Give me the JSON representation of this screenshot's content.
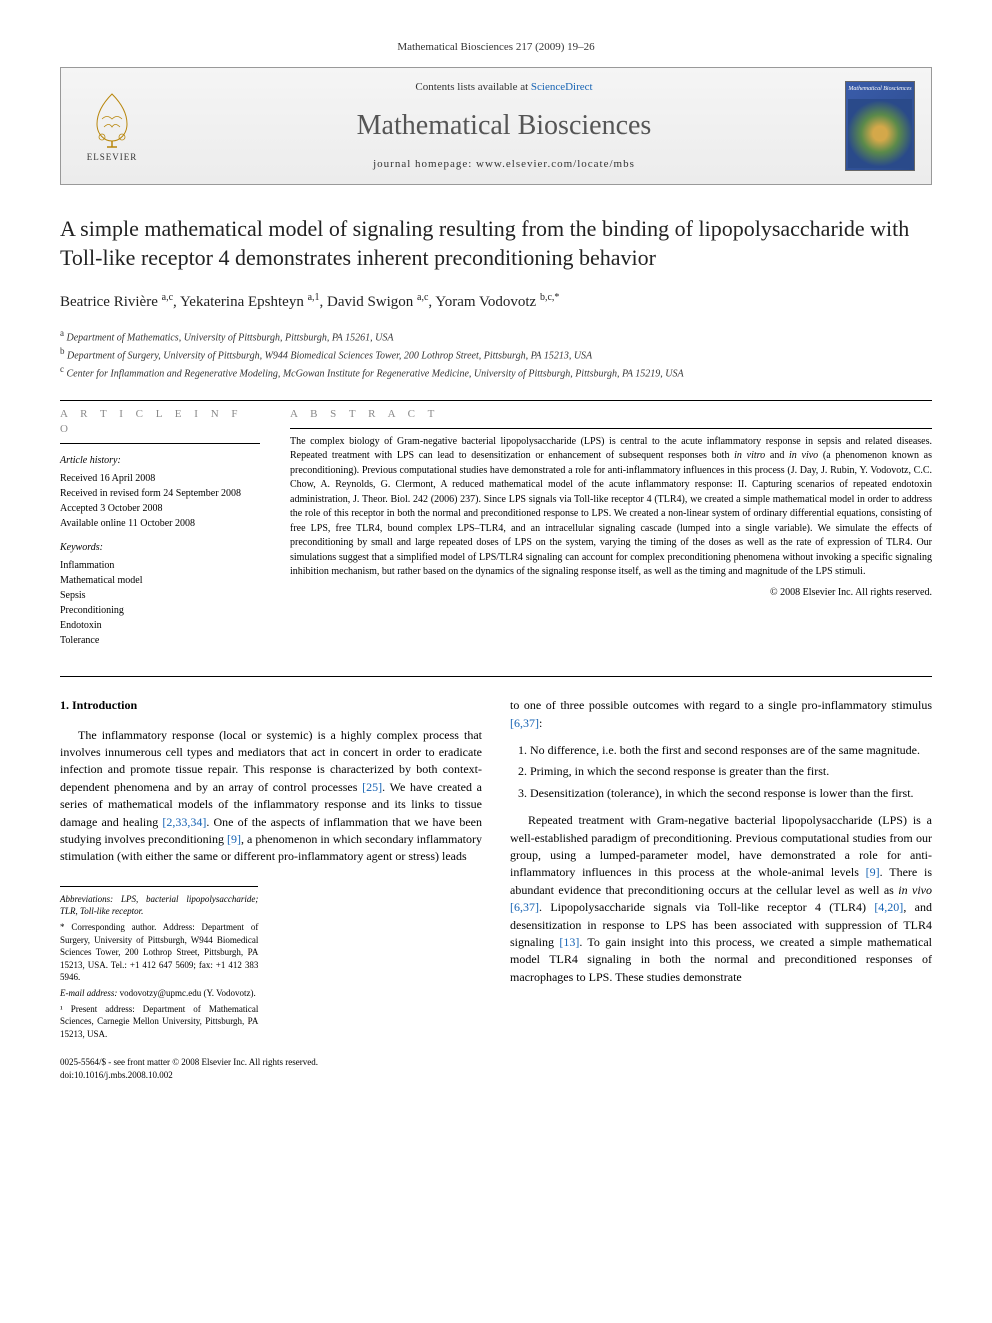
{
  "journal_ref": "Mathematical Biosciences 217 (2009) 19–26",
  "header": {
    "contents_prefix": "Contents lists available at ",
    "contents_link": "ScienceDirect",
    "journal_name": "Mathematical Biosciences",
    "homepage": "journal homepage: www.elsevier.com/locate/mbs",
    "publisher": "ELSEVIER",
    "cover_title": "Mathematical Biosciences"
  },
  "title": "A simple mathematical model of signaling resulting from the binding of lipopolysaccharide with Toll-like receptor 4 demonstrates inherent preconditioning behavior",
  "authors_html": "Beatrice Rivière <sup>a,c</sup>, Yekaterina Epshteyn <sup>a,1</sup>, David Swigon <sup>a,c</sup>, Yoram Vodovotz <sup>b,c,*</sup>",
  "affiliations": [
    {
      "sup": "a",
      "text": "Department of Mathematics, University of Pittsburgh, Pittsburgh, PA 15261, USA"
    },
    {
      "sup": "b",
      "text": "Department of Surgery, University of Pittsburgh, W944 Biomedical Sciences Tower, 200 Lothrop Street, Pittsburgh, PA 15213, USA"
    },
    {
      "sup": "c",
      "text": "Center for Inflammation and Regenerative Modeling, McGowan Institute for Regenerative Medicine, University of Pittsburgh, Pittsburgh, PA 15219, USA"
    }
  ],
  "info": {
    "heading": "A R T I C L E   I N F O",
    "history_label": "Article history:",
    "history": [
      "Received 16 April 2008",
      "Received in revised form 24 September 2008",
      "Accepted 3 October 2008",
      "Available online 11 October 2008"
    ],
    "keywords_label": "Keywords:",
    "keywords": [
      "Inflammation",
      "Mathematical model",
      "Sepsis",
      "Preconditioning",
      "Endotoxin",
      "Tolerance"
    ]
  },
  "abstract": {
    "heading": "A B S T R A C T",
    "text": "The complex biology of Gram-negative bacterial lipopolysaccharide (LPS) is central to the acute inflammatory response in sepsis and related diseases. Repeated treatment with LPS can lead to desensitization or enhancement of subsequent responses both in vitro and in vivo (a phenomenon known as preconditioning). Previous computational studies have demonstrated a role for anti-inflammatory influences in this process (J. Day, J. Rubin, Y. Vodovotz, C.C. Chow, A. Reynolds, G. Clermont, A reduced mathematical model of the acute inflammatory response: II. Capturing scenarios of repeated endotoxin administration, J. Theor. Biol. 242 (2006) 237). Since LPS signals via Toll-like receptor 4 (TLR4), we created a simple mathematical model in order to address the role of this receptor in both the normal and preconditioned response to LPS. We created a non-linear system of ordinary differential equations, consisting of free LPS, free TLR4, bound complex LPS–TLR4, and an intracellular signaling cascade (lumped into a single variable). We simulate the effects of preconditioning by small and large repeated doses of LPS on the system, varying the timing of the doses as well as the rate of expression of TLR4. Our simulations suggest that a simplified model of LPS/TLR4 signaling can account for complex preconditioning phenomena without invoking a specific signaling inhibition mechanism, but rather based on the dynamics of the signaling response itself, as well as the timing and magnitude of the LPS stimuli.",
    "copyright": "© 2008 Elsevier Inc. All rights reserved."
  },
  "section1": {
    "heading": "1. Introduction",
    "para1": "The inflammatory response (local or systemic) is a highly complex process that involves innumerous cell types and mediators that act in concert in order to eradicate infection and promote tissue repair. This response is characterized by both context-dependent phenomena and by an array of control processes [25]. We have created a series of mathematical models of the inflammatory response and its links to tissue damage and healing [2,33,34]. One of the aspects of inflammation that we have been studying involves preconditioning [9], a phenomenon in which secondary inflammatory stimulation (with either the same or different pro-inflammatory agent or stress) leads",
    "para2_lead": "to one of three possible outcomes with regard to a single pro-inflammatory stimulus [6,37]:",
    "list": [
      "No difference, i.e. both the first and second responses are of the same magnitude.",
      "Priming, in which the second response is greater than the first.",
      "Desensitization (tolerance), in which the second response is lower than the first."
    ],
    "para3": "Repeated treatment with Gram-negative bacterial lipopolysaccharide (LPS) is a well-established paradigm of preconditioning. Previous computational studies from our group, using a lumped-parameter model, have demonstrated a role for anti-inflammatory influences in this process at the whole-animal levels [9]. There is abundant evidence that preconditioning occurs at the cellular level as well as in vivo [6,37]. Lipopolysaccharide signals via Toll-like receptor 4 (TLR4) [4,20], and desensitization in response to LPS has been associated with suppression of TLR4 signaling [13]. To gain insight into this process, we created a simple mathematical model TLR4 signaling in both the normal and preconditioned responses of macrophages to LPS. These studies demonstrate"
  },
  "footnotes": {
    "abbrev": "Abbreviations: LPS, bacterial lipopolysaccharide; TLR, Toll-like receptor.",
    "corr": "* Corresponding author. Address: Department of Surgery, University of Pittsburgh, W944 Biomedical Sciences Tower, 200 Lothrop Street, Pittsburgh, PA 15213, USA. Tel.: +1 412 647 5609; fax: +1 412 383 5946.",
    "email_label": "E-mail address:",
    "email": "vodovotzy@upmc.edu (Y. Vodovotz).",
    "present": "¹ Present address: Department of Mathematical Sciences, Carnegie Mellon University, Pittsburgh, PA 15213, USA."
  },
  "doi": {
    "line1": "0025-5564/$ - see front matter © 2008 Elsevier Inc. All rights reserved.",
    "line2": "doi:10.1016/j.mbs.2008.10.002"
  },
  "colors": {
    "link": "#1864b4",
    "heading_gray": "#888888"
  }
}
